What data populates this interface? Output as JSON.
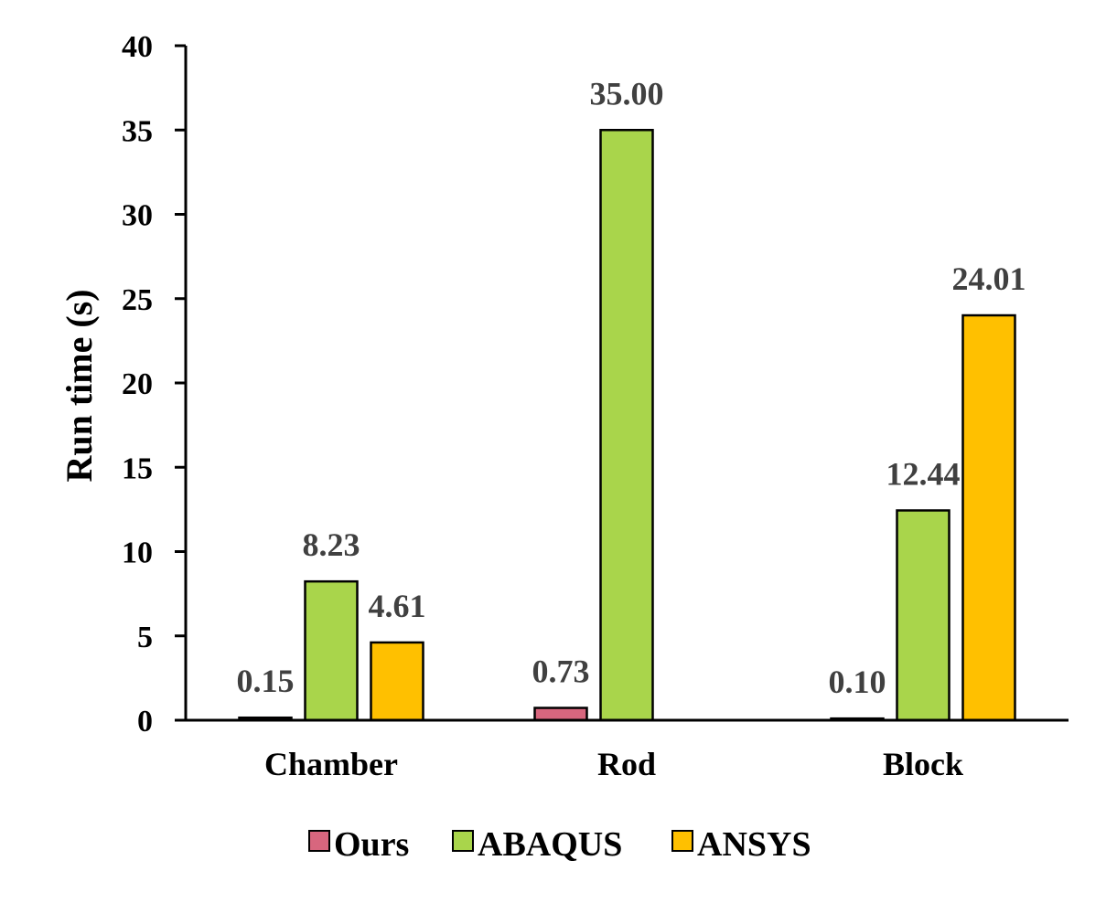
{
  "chart_data": {
    "type": "bar",
    "categories": [
      "Chamber",
      "Rod",
      "Block"
    ],
    "series": [
      {
        "name": "Ours",
        "color": "#d8667e",
        "values": [
          0.15,
          0.73,
          0.1
        ],
        "labels": [
          "0.15",
          "0.73",
          "0.10"
        ]
      },
      {
        "name": "ABAQUS",
        "color": "#a9d54b",
        "values": [
          8.23,
          35.0,
          12.44
        ],
        "labels": [
          "8.23",
          "35.00",
          "12.44"
        ]
      },
      {
        "name": "ANSYS",
        "color": "#ffc000",
        "values": [
          4.61,
          null,
          24.01
        ],
        "labels": [
          "4.61",
          "",
          "24.01"
        ]
      }
    ],
    "ylabel": "Run time (s)",
    "xlabel": "",
    "ylim": [
      0,
      40
    ],
    "yticks": [
      0,
      5,
      10,
      15,
      20,
      25,
      30,
      35,
      40
    ],
    "grid": false,
    "legend_position": "bottom"
  }
}
